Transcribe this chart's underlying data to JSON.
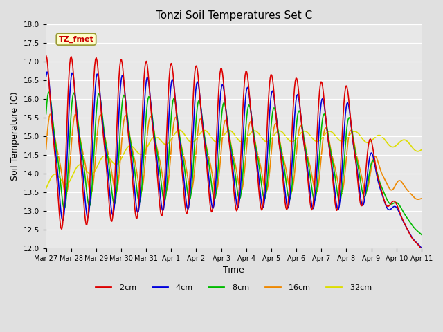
{
  "title": "Tonzi Soil Temperatures Set C",
  "xlabel": "Time",
  "ylabel": "Soil Temperature (C)",
  "ylim": [
    12.0,
    18.0
  ],
  "yticks": [
    12.0,
    12.5,
    13.0,
    13.5,
    14.0,
    14.5,
    15.0,
    15.5,
    16.0,
    16.5,
    17.0,
    17.5,
    18.0
  ],
  "bg_color": "#e0e0e0",
  "plot_bg_color": "#e8e8e8",
  "series_colors": [
    "#dd0000",
    "#0000dd",
    "#00bb00",
    "#ee8800",
    "#dddd00"
  ],
  "series_labels": [
    "-2cm",
    "-4cm",
    "-8cm",
    "-16cm",
    "-32cm"
  ],
  "annotation_text": "TZ_fmet",
  "annotation_color": "#cc0000",
  "annotation_bg": "#ffffcc",
  "annotation_border": "#999933",
  "x_tick_labels": [
    "Mar 27",
    "Mar 28",
    "Mar 29",
    "Mar 30",
    "Mar 31",
    "Apr 1",
    "Apr 2",
    "Apr 3",
    "Apr 4",
    "Apr 5",
    "Apr 6",
    "Apr 7",
    "Apr 8",
    "Apr 9",
    "Apr 10",
    "Apr 11"
  ],
  "num_points": 480,
  "days": 15
}
